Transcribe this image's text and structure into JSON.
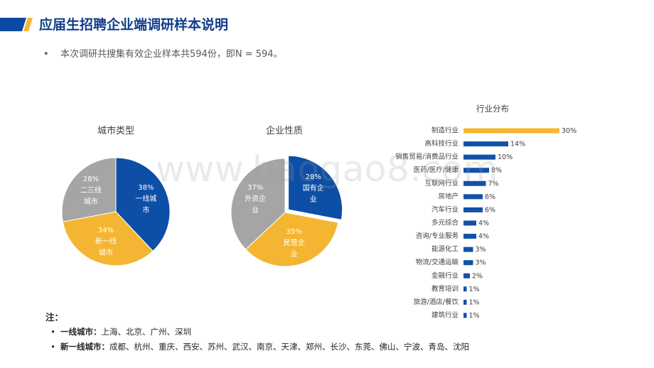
{
  "header": {
    "title": "应届生招聘企业端调研样本说明",
    "accent_colors": [
      "#0b4aa2",
      "#f5b731"
    ]
  },
  "summary": {
    "bullet": "•",
    "text": "本次调研共搜集有效企业样本共594份，即N = 594。"
  },
  "chart_data": [
    {
      "type": "pie",
      "title": "城市类型",
      "unit": "%",
      "categories": [
        "一线城市",
        "新一线城市",
        "二三线城市"
      ],
      "values": [
        38,
        34,
        28
      ],
      "colors": [
        "#0d4ea6",
        "#f4b632",
        "#a5a5a5"
      ],
      "exploded": [
        false,
        false,
        false
      ],
      "legend": "none"
    },
    {
      "type": "pie",
      "title": "企业性质",
      "unit": "%",
      "categories": [
        "国有企业",
        "民营企业",
        "外资企业"
      ],
      "values": [
        28,
        35,
        37
      ],
      "colors": [
        "#0d4ea6",
        "#f4b632",
        "#a5a5a5"
      ],
      "exploded": [
        true,
        false,
        false
      ],
      "legend": "none"
    },
    {
      "type": "bar",
      "orientation": "horizontal",
      "title": "行业分布",
      "unit": "%",
      "categories": [
        "制造行业",
        "高科技行业",
        "销售贸易/消费品行业",
        "医药/医疗/健康",
        "互联网行业",
        "房地产",
        "汽车行业",
        "多元综合",
        "咨询/专业服务",
        "能源化工",
        "物流/交通运输",
        "金融行业",
        "教育培训",
        "旅游/酒店/餐饮",
        "建筑行业"
      ],
      "values": [
        30,
        14,
        10,
        8,
        7,
        6,
        6,
        4,
        4,
        3,
        3,
        2,
        1,
        1,
        1
      ],
      "color": "#1351a8",
      "highlight_color": "#f5b731",
      "highlight_index": 0,
      "xlim": [
        0,
        30
      ],
      "grid": false,
      "legend": "none"
    }
  ],
  "notes": {
    "heading": "注：",
    "items": [
      {
        "bullet": "•",
        "term": "一线城市：",
        "text": "上海、北京、广州、深圳"
      },
      {
        "bullet": "•",
        "term": "新一线城市：",
        "text": "成都、杭州、重庆、西安、苏州、武汉、南京、天津、郑州、长沙、东莞、佛山、宁波、青岛、沈阳"
      }
    ]
  },
  "watermark": "www.baogao8.com"
}
